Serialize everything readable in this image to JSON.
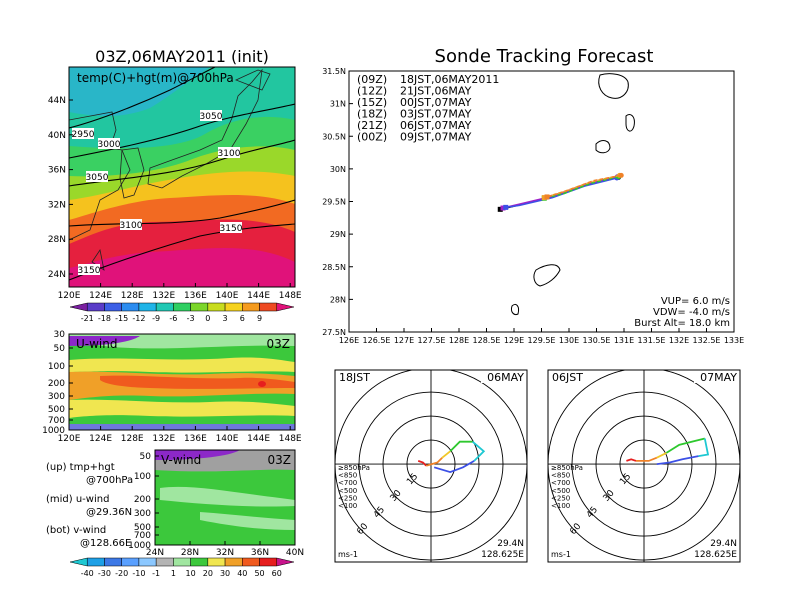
{
  "left_title": "03Z,06MAY2011 (init)",
  "right_title": "Sonde Tracking Forecast",
  "map_panel": {
    "label": "temp(C)+hgt(m)@700hPa",
    "lat_ticks": [
      "44N",
      "40N",
      "36N",
      "32N",
      "28N",
      "24N"
    ],
    "lon_ticks": [
      "120E",
      "124E",
      "128E",
      "132E",
      "136E",
      "140E",
      "144E",
      "148E"
    ],
    "contour_labels": [
      "2950",
      "3000",
      "3050",
      "3050",
      "3100",
      "3100",
      "3150",
      "3150"
    ]
  },
  "temp_colorbar": {
    "labels": [
      "-21",
      "-18",
      "-15",
      "-12",
      "-9",
      "-6",
      "-3",
      "0",
      "3",
      "6",
      "9"
    ],
    "colors": [
      "#7a1fa0",
      "#5a3cc8",
      "#3c5fe6",
      "#2b8cf0",
      "#1fb4e8",
      "#20c8b4",
      "#2fcf62",
      "#7bd62a",
      "#c8dc1e",
      "#f5d21e",
      "#f59b1e",
      "#ee4a22",
      "#e0127a"
    ]
  },
  "uwind_panel": {
    "label": "U-wind",
    "time": "03Z",
    "p_ticks": [
      "30",
      "50",
      "100",
      "200",
      "300",
      "500",
      "700",
      "1000"
    ],
    "lon_ticks": [
      "120E",
      "124E",
      "128E",
      "132E",
      "136E",
      "140E",
      "144E",
      "148E"
    ]
  },
  "vwind_panel": {
    "label": "V-wind",
    "time": "03Z",
    "p_ticks": [
      "50",
      "100",
      "200",
      "300",
      "500",
      "700",
      "1000"
    ],
    "lat_ticks": [
      "24N",
      "28N",
      "32N",
      "36N",
      "40N"
    ]
  },
  "panel_notes": [
    {
      "key": "(up) tmp+hgt",
      "sub": "@700hPa"
    },
    {
      "key": "(mid) u-wind",
      "sub": "@29.36N"
    },
    {
      "key": "(bot) v-wind",
      "sub": "@128.66E"
    }
  ],
  "wind_colorbar": {
    "labels": [
      "-40",
      "-30",
      "-20",
      "-10",
      "-1",
      "1",
      "10",
      "20",
      "30",
      "40",
      "50",
      "60"
    ],
    "colors": [
      "#1ec8d2",
      "#1ea0e6",
      "#3c78e6",
      "#5aa0ff",
      "#8cc8ff",
      "#b4b4b4",
      "#a0e6a0",
      "#3cc83c",
      "#f0e650",
      "#f0a028",
      "#f05a1e",
      "#e61e1e",
      "#c8148c"
    ]
  },
  "chart_data": [
    {
      "type": "line",
      "title": "Sonde Tracking Forecast",
      "xlim": [
        126,
        133
      ],
      "ylim": [
        27.5,
        31.5
      ],
      "x_ticks": [
        "126E",
        "126.5E",
        "127E",
        "127.5E",
        "128E",
        "128.5E",
        "129E",
        "129.5E",
        "130E",
        "130.5E",
        "131E",
        "131.5E",
        "132E",
        "132.5E",
        "133E"
      ],
      "y_ticks": [
        "27.5N",
        "28N",
        "28.5N",
        "29N",
        "29.5N",
        "30N",
        "30.5N",
        "31N",
        "31.5N"
      ],
      "legend": [
        {
          "run": "(09Z)",
          "text": "18JST,06MAY2011",
          "color": "#000000"
        },
        {
          "run": "(12Z)",
          "text": "21JST,06MAY",
          "color": "#a020c8"
        },
        {
          "run": "(15Z)",
          "text": "00JST,07MAY",
          "color": "#3c50e6"
        },
        {
          "run": "(18Z)",
          "text": "03JST,07MAY",
          "color": "#2ec82e"
        },
        {
          "run": "(21Z)",
          "text": "06JST,07MAY",
          "color": "#f0a028"
        },
        {
          "run": "(00Z)",
          "text": "09JST,07MAY",
          "color": "#f08228"
        }
      ],
      "series": [
        {
          "name": "(09Z)",
          "points": [
            [
              130.9,
              29.87
            ],
            [
              130.3,
              29.75
            ],
            [
              129.7,
              29.57
            ],
            [
              129.1,
              29.45
            ],
            [
              128.75,
              29.38
            ]
          ]
        },
        {
          "name": "(12Z)",
          "points": [
            [
              130.88,
              29.88
            ],
            [
              130.3,
              29.76
            ],
            [
              129.7,
              29.58
            ],
            [
              129.1,
              29.46
            ],
            [
              128.8,
              29.4
            ]
          ]
        },
        {
          "name": "(15Z)",
          "points": [
            [
              130.87,
              29.86
            ],
            [
              130.3,
              29.74
            ],
            [
              129.7,
              29.56
            ],
            [
              129.1,
              29.44
            ],
            [
              128.85,
              29.41
            ]
          ]
        },
        {
          "name": "(18Z)",
          "points": [
            [
              130.9,
              29.88
            ],
            [
              130.4,
              29.78
            ],
            [
              129.9,
              29.62
            ],
            [
              129.55,
              29.55
            ]
          ]
        },
        {
          "name": "(21Z)",
          "points": [
            [
              130.92,
              29.9
            ],
            [
              130.4,
              29.8
            ],
            [
              129.9,
              29.65
            ],
            [
              129.55,
              29.56
            ]
          ]
        },
        {
          "name": "(00Z)",
          "points": [
            [
              130.95,
              29.9
            ],
            [
              130.45,
              29.82
            ],
            [
              129.95,
              29.66
            ],
            [
              129.6,
              29.57
            ]
          ]
        }
      ],
      "params": [
        "VUP= 6.0 m/s",
        "VDW= -4.0 m/s",
        "Burst Alt= 18.0 km"
      ]
    },
    {
      "type": "scatter",
      "title": "18JST",
      "date": "06MAY",
      "ring_labels": [
        "15",
        "30",
        "45",
        "60"
      ],
      "unit": "ms-1",
      "location": [
        "29.4N",
        "128.625E"
      ],
      "levels": [
        {
          "label": "≥850hPa",
          "color": "#e61e1e"
        },
        {
          "label": "<850",
          "color": "#f08228"
        },
        {
          "label": "<700",
          "color": "#f0c828"
        },
        {
          "label": "<500",
          "color": "#2ec82e"
        },
        {
          "label": "<250",
          "color": "#1ec8d2"
        },
        {
          "label": "<100",
          "color": "#3c50e6"
        }
      ],
      "hodograph": [
        {
          "color": "#e61e1e",
          "points": [
            [
              -8,
              2
            ],
            [
              -5,
              1
            ],
            [
              -3,
              -1
            ]
          ]
        },
        {
          "color": "#f08228",
          "points": [
            [
              -3,
              -1
            ],
            [
              4,
              1
            ],
            [
              7,
              4
            ]
          ]
        },
        {
          "color": "#f0c828",
          "points": [
            [
              7,
              4
            ],
            [
              12,
              8
            ]
          ]
        },
        {
          "color": "#2ec82e",
          "points": [
            [
              12,
              8
            ],
            [
              18,
              14
            ],
            [
              26,
              14
            ]
          ]
        },
        {
          "color": "#1ec8d2",
          "points": [
            [
              26,
              14
            ],
            [
              33,
              8
            ],
            [
              27,
              2
            ]
          ]
        },
        {
          "color": "#3c50e6",
          "points": [
            [
              27,
              2
            ],
            [
              20,
              -2
            ],
            [
              12,
              -5
            ],
            [
              2,
              -2
            ]
          ]
        }
      ]
    },
    {
      "type": "scatter",
      "title": "06JST",
      "date": "07MAY",
      "ring_labels": [
        "15",
        "30",
        "45",
        "60"
      ],
      "unit": "ms-1",
      "location": [
        "29.4N",
        "128.625E"
      ],
      "levels": [
        {
          "label": "≥850hPa",
          "color": "#e61e1e"
        },
        {
          "label": "<850",
          "color": "#f08228"
        },
        {
          "label": "<700",
          "color": "#f0c828"
        },
        {
          "label": "<500",
          "color": "#2ec82e"
        },
        {
          "label": "<250",
          "color": "#1ec8d2"
        },
        {
          "label": "<100",
          "color": "#3c50e6"
        }
      ],
      "hodograph": [
        {
          "color": "#e61e1e",
          "points": [
            [
              -11,
              2
            ],
            [
              -8,
              3
            ],
            [
              -5,
              2
            ]
          ]
        },
        {
          "color": "#f08228",
          "points": [
            [
              -5,
              2
            ],
            [
              3,
              2
            ],
            [
              8,
              4
            ]
          ]
        },
        {
          "color": "#f0c828",
          "points": [
            [
              8,
              4
            ],
            [
              14,
              7
            ]
          ]
        },
        {
          "color": "#2ec82e",
          "points": [
            [
              14,
              7
            ],
            [
              22,
              12
            ],
            [
              38,
              16
            ]
          ]
        },
        {
          "color": "#1ec8d2",
          "points": [
            [
              38,
              16
            ],
            [
              40,
              6
            ],
            [
              34,
              5
            ]
          ]
        },
        {
          "color": "#3c50e6",
          "points": [
            [
              34,
              5
            ],
            [
              24,
              3
            ],
            [
              16,
              1
            ],
            [
              8,
              0
            ]
          ]
        }
      ]
    }
  ]
}
